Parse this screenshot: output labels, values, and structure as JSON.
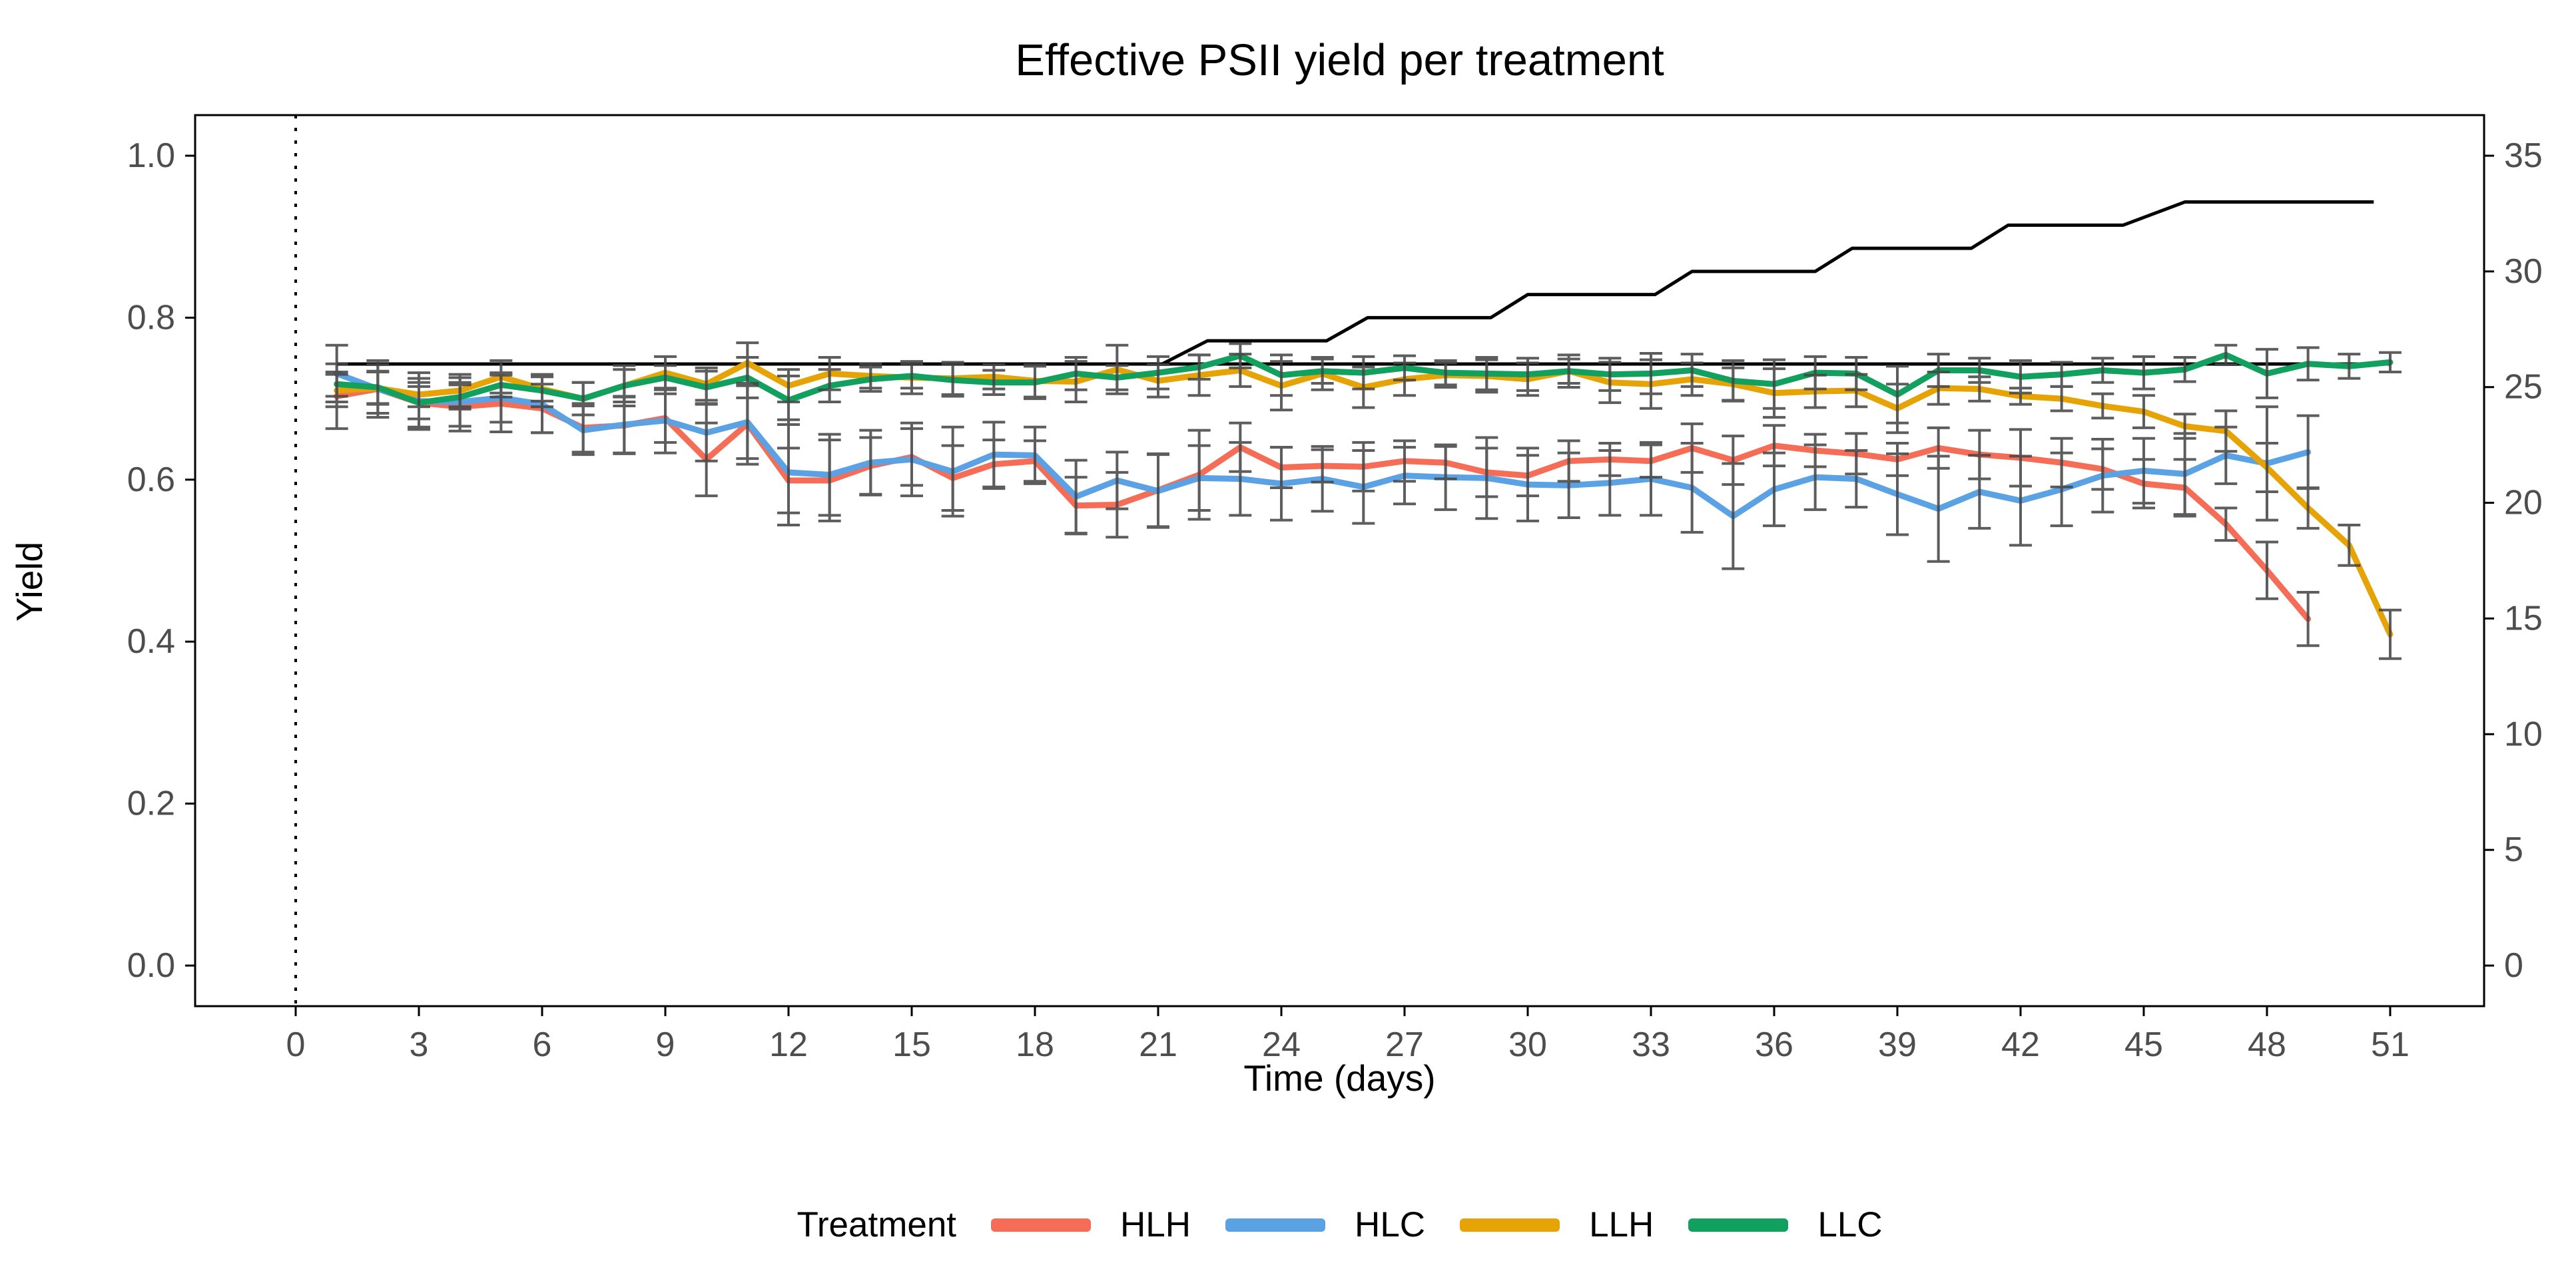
{
  "title": "Effective PSII yield per treatment",
  "axes": {
    "x": {
      "label": "Time (days)",
      "ticks": [
        0,
        3,
        6,
        9,
        12,
        15,
        18,
        21,
        24,
        27,
        30,
        33,
        36,
        39,
        42,
        45,
        48,
        51
      ]
    },
    "y_left": {
      "label": "Yield",
      "ticks": [
        "1.0",
        "0.8",
        "0.6",
        "0.4",
        "0.2",
        "0.0"
      ],
      "tick_values": [
        1.0,
        0.8,
        0.6,
        0.4,
        0.2,
        0.0
      ]
    },
    "y_right": {
      "label": "",
      "ticks": [
        "35",
        "30",
        "25",
        "20",
        "15",
        "10",
        "5",
        "0"
      ],
      "tick_values": [
        35,
        30,
        25,
        20,
        15,
        10,
        5,
        0
      ],
      "scale_factor": 35
    }
  },
  "legend": {
    "title": "Treatment",
    "items": [
      {
        "label": "HLH",
        "color": "#F66D57"
      },
      {
        "label": "HLC",
        "color": "#5AA2E4"
      },
      {
        "label": "LLH",
        "color": "#E5A306"
      },
      {
        "label": "LLC",
        "color": "#12A05F"
      }
    ]
  },
  "chart_data": {
    "type": "line",
    "title": "Effective PSII yield per treatment",
    "xlabel": "Time (days)",
    "ylabel": "Yield",
    "xlim": [
      -2.45,
      53.3
    ],
    "ylim_left": [
      -0.05,
      1.05
    ],
    "ylim_right": [
      -1.75,
      36.75
    ],
    "grid": false,
    "legend_position": "bottom",
    "dotted_vline_day": 0,
    "series": [
      {
        "name": "HLH",
        "color": "#F66D57",
        "x": [
          1,
          2,
          3,
          4,
          5,
          6,
          7,
          8,
          9,
          10,
          11,
          12,
          13,
          14,
          15,
          16,
          17,
          18,
          19,
          20,
          21,
          22,
          23,
          24,
          25,
          26,
          27,
          28,
          29,
          30,
          31,
          32,
          33,
          34,
          35,
          36,
          37,
          38,
          39,
          40,
          41,
          42,
          43,
          44,
          45,
          46,
          47,
          48,
          49
        ],
        "y": [
          0.703,
          0.712,
          0.695,
          0.69,
          0.694,
          0.688,
          0.664,
          0.667,
          0.676,
          0.625,
          0.669,
          0.599,
          0.599,
          0.617,
          0.628,
          0.602,
          0.619,
          0.623,
          0.568,
          0.569,
          0.587,
          0.606,
          0.64,
          0.615,
          0.617,
          0.616,
          0.623,
          0.621,
          0.609,
          0.605,
          0.623,
          0.625,
          0.623,
          0.639,
          0.624,
          0.642,
          0.636,
          0.632,
          0.625,
          0.639,
          0.631,
          0.627,
          0.621,
          0.613,
          0.595,
          0.59,
          0.545,
          0.488,
          0.428
        ],
        "err": [
          0.04,
          0.035,
          0.03,
          0.03,
          0.035,
          0.03,
          0.03,
          0.035,
          0.03,
          0.045,
          0.05,
          0.04,
          0.05,
          0.035,
          0.035,
          0.04,
          0.03,
          0.025,
          0.035,
          0.04,
          0.045,
          0.055,
          0.03,
          0.025,
          0.02,
          0.03,
          0.025,
          0.02,
          0.03,
          0.025,
          0.025,
          0.02,
          0.02,
          0.03,
          0.03,
          0.025,
          0.02,
          0.025,
          0.02,
          0.025,
          0.03,
          0.035,
          0.03,
          0.025,
          0.03,
          0.035,
          0.02,
          0.035,
          0.033
        ]
      },
      {
        "name": "HLC",
        "color": "#5AA2E4",
        "x": [
          1,
          2,
          3,
          4,
          5,
          6,
          7,
          8,
          9,
          10,
          11,
          12,
          13,
          14,
          15,
          16,
          17,
          18,
          19,
          20,
          21,
          22,
          23,
          24,
          25,
          26,
          27,
          28,
          29,
          30,
          31,
          32,
          33,
          34,
          35,
          36,
          37,
          38,
          39,
          40,
          41,
          42,
          43,
          44,
          45,
          46,
          47,
          48,
          49
        ],
        "y": [
          0.731,
          0.712,
          0.697,
          0.696,
          0.701,
          0.693,
          0.661,
          0.668,
          0.673,
          0.658,
          0.671,
          0.609,
          0.606,
          0.621,
          0.625,
          0.61,
          0.631,
          0.63,
          0.579,
          0.599,
          0.586,
          0.602,
          0.601,
          0.595,
          0.601,
          0.591,
          0.605,
          0.603,
          0.602,
          0.594,
          0.593,
          0.596,
          0.601,
          0.59,
          0.555,
          0.588,
          0.603,
          0.601,
          0.582,
          0.564,
          0.585,
          0.574,
          0.588,
          0.605,
          0.611,
          0.607,
          0.63,
          0.62,
          0.634
        ],
        "err": [
          0.035,
          0.03,
          0.035,
          0.03,
          0.03,
          0.035,
          0.03,
          0.035,
          0.04,
          0.035,
          0.045,
          0.065,
          0.05,
          0.04,
          0.045,
          0.055,
          0.04,
          0.035,
          0.045,
          0.035,
          0.045,
          0.04,
          0.045,
          0.045,
          0.04,
          0.045,
          0.035,
          0.04,
          0.05,
          0.045,
          0.04,
          0.04,
          0.045,
          0.055,
          0.065,
          0.045,
          0.04,
          0.035,
          0.05,
          0.065,
          0.045,
          0.055,
          0.045,
          0.045,
          0.04,
          0.05,
          0.035,
          0.07,
          0.045
        ]
      },
      {
        "name": "LLH",
        "color": "#E5A306",
        "x": [
          1,
          2,
          3,
          4,
          5,
          6,
          7,
          8,
          9,
          10,
          11,
          12,
          13,
          14,
          15,
          16,
          17,
          18,
          19,
          20,
          21,
          22,
          23,
          24,
          25,
          26,
          27,
          28,
          29,
          30,
          31,
          32,
          33,
          34,
          35,
          36,
          37,
          38,
          39,
          40,
          41,
          42,
          43,
          44,
          45,
          46,
          47,
          48,
          49,
          50,
          51
        ],
        "y": [
          0.71,
          0.713,
          0.705,
          0.71,
          0.727,
          0.712,
          0.7,
          0.716,
          0.732,
          0.718,
          0.744,
          0.716,
          0.731,
          0.728,
          0.726,
          0.725,
          0.727,
          0.722,
          0.721,
          0.736,
          0.722,
          0.729,
          0.735,
          0.716,
          0.731,
          0.714,
          0.724,
          0.729,
          0.728,
          0.724,
          0.734,
          0.72,
          0.718,
          0.724,
          0.718,
          0.707,
          0.709,
          0.71,
          0.688,
          0.713,
          0.712,
          0.703,
          0.7,
          0.691,
          0.684,
          0.666,
          0.66,
          0.615,
          0.565,
          0.519,
          0.409
        ],
        "err": [
          0.02,
          0.02,
          0.015,
          0.02,
          0.02,
          0.015,
          0.02,
          0.025,
          0.02,
          0.02,
          0.025,
          0.02,
          0.02,
          0.015,
          0.02,
          0.02,
          0.015,
          0.02,
          0.025,
          0.03,
          0.02,
          0.025,
          0.02,
          0.03,
          0.02,
          0.025,
          0.02,
          0.015,
          0.02,
          0.02,
          0.02,
          0.025,
          0.03,
          0.02,
          0.02,
          0.03,
          0.02,
          0.02,
          0.03,
          0.02,
          0.015,
          0.01,
          0.015,
          0.015,
          0.02,
          0.015,
          0.025,
          0.03,
          0.025,
          0.025,
          0.03
        ]
      },
      {
        "name": "LLC",
        "color": "#12A05F",
        "x": [
          1,
          2,
          3,
          4,
          5,
          6,
          7,
          8,
          9,
          10,
          11,
          12,
          13,
          14,
          15,
          16,
          17,
          18,
          19,
          20,
          21,
          22,
          23,
          24,
          25,
          26,
          27,
          28,
          29,
          30,
          31,
          32,
          33,
          34,
          35,
          36,
          37,
          38,
          39,
          40,
          41,
          42,
          43,
          44,
          45,
          46,
          47,
          48,
          49,
          50,
          51
        ],
        "y": [
          0.718,
          0.714,
          0.695,
          0.702,
          0.717,
          0.71,
          0.7,
          0.716,
          0.726,
          0.714,
          0.726,
          0.698,
          0.716,
          0.724,
          0.728,
          0.723,
          0.72,
          0.72,
          0.731,
          0.726,
          0.732,
          0.739,
          0.753,
          0.729,
          0.734,
          0.732,
          0.738,
          0.732,
          0.731,
          0.73,
          0.734,
          0.73,
          0.731,
          0.735,
          0.722,
          0.718,
          0.732,
          0.731,
          0.705,
          0.735,
          0.735,
          0.727,
          0.73,
          0.735,
          0.732,
          0.736,
          0.754,
          0.731,
          0.743,
          0.74,
          0.745
        ],
        "err": [
          0.015,
          0.02,
          0.02,
          0.015,
          0.015,
          0.02,
          0.02,
          0.02,
          0.015,
          0.02,
          0.025,
          0.03,
          0.02,
          0.015,
          0.015,
          0.02,
          0.015,
          0.02,
          0.02,
          0.015,
          0.02,
          0.015,
          0.015,
          0.025,
          0.015,
          0.02,
          0.015,
          0.015,
          0.02,
          0.02,
          0.015,
          0.02,
          0.025,
          0.02,
          0.025,
          0.03,
          0.02,
          0.02,
          0.035,
          0.02,
          0.015,
          0.02,
          0.015,
          0.015,
          0.02,
          0.015,
          0.012,
          0.03,
          0.02,
          0.015,
          0.012
        ]
      }
    ],
    "temperature_lines": {
      "axis": "right",
      "color": "#000000",
      "control": [
        [
          1,
          26
        ],
        [
          51,
          26
        ]
      ],
      "ramp": [
        [
          1,
          26
        ],
        [
          21.1,
          26
        ],
        [
          22.2,
          27
        ],
        [
          25.1,
          27
        ],
        [
          26.1,
          28
        ],
        [
          29.1,
          28
        ],
        [
          30.0,
          29
        ],
        [
          33.1,
          29
        ],
        [
          34.0,
          30
        ],
        [
          37.0,
          30
        ],
        [
          37.9,
          31
        ],
        [
          40.8,
          31
        ],
        [
          41.7,
          32
        ],
        [
          44.5,
          32
        ],
        [
          46.0,
          33
        ],
        [
          50.6,
          33
        ]
      ]
    }
  }
}
